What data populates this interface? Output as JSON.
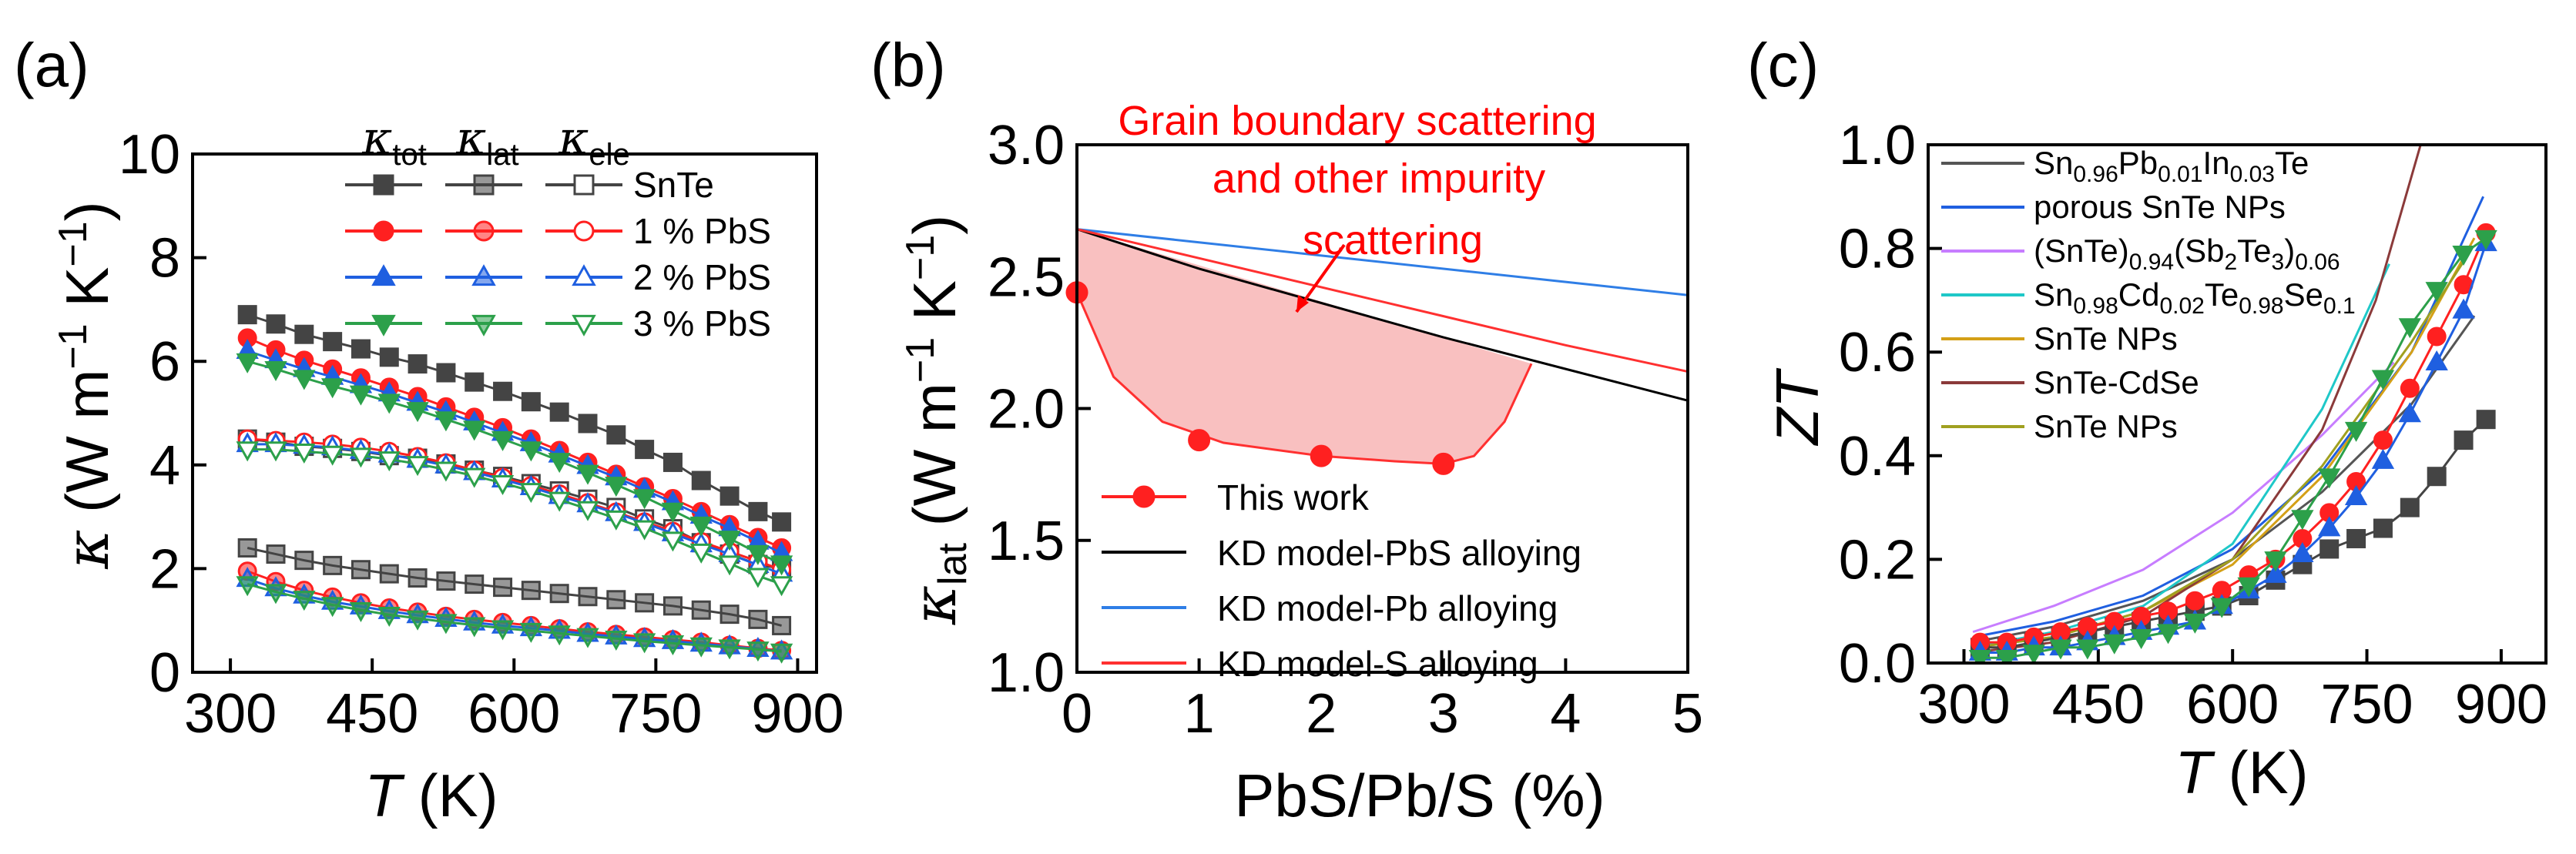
{
  "chart_data": [
    {
      "panel": "(a)",
      "type": "line",
      "xlabel": "T (K)",
      "ylabel": "κ (W m⁻¹ K⁻¹)",
      "xlim": [
        260,
        920
      ],
      "ylim": [
        0,
        10
      ],
      "xticks": [
        300,
        450,
        600,
        750,
        900
      ],
      "yticks": [
        0,
        2,
        4,
        6,
        8,
        10
      ],
      "legend_headers": [
        "tot",
        "lat",
        "ele"
      ],
      "legend_rows": [
        "SnTe",
        "1 % PbS",
        "2 % PbS",
        "3 % PbS"
      ],
      "x": [
        318,
        348,
        378,
        408,
        438,
        468,
        498,
        528,
        558,
        588,
        618,
        648,
        678,
        708,
        738,
        768,
        798,
        828,
        858,
        883
      ],
      "series": [
        {
          "name": "SnTe",
          "color": "#444444",
          "marker": "square",
          "tot": [
            6.9,
            6.72,
            6.52,
            6.38,
            6.24,
            6.08,
            5.95,
            5.78,
            5.6,
            5.42,
            5.22,
            5.02,
            4.8,
            4.58,
            4.3,
            4.05,
            3.7,
            3.4,
            3.1,
            2.9
          ],
          "lat": [
            2.4,
            2.28,
            2.16,
            2.06,
            1.98,
            1.9,
            1.82,
            1.76,
            1.7,
            1.64,
            1.58,
            1.52,
            1.46,
            1.4,
            1.34,
            1.28,
            1.2,
            1.12,
            1.02,
            0.9
          ],
          "ele": [
            4.5,
            4.44,
            4.36,
            4.32,
            4.26,
            4.18,
            4.13,
            4.02,
            3.9,
            3.78,
            3.64,
            3.5,
            3.34,
            3.18,
            2.96,
            2.77,
            2.5,
            2.28,
            2.08,
            2.0
          ]
        },
        {
          "name": "1 % PbS",
          "color": "#ff2020",
          "marker": "circle",
          "tot": [
            6.45,
            6.22,
            6.02,
            5.85,
            5.68,
            5.5,
            5.32,
            5.12,
            4.92,
            4.72,
            4.5,
            4.28,
            4.05,
            3.82,
            3.58,
            3.35,
            3.1,
            2.85,
            2.6,
            2.4
          ],
          "lat": [
            1.95,
            1.75,
            1.58,
            1.45,
            1.34,
            1.24,
            1.16,
            1.08,
            1.02,
            0.96,
            0.9,
            0.84,
            0.78,
            0.73,
            0.68,
            0.63,
            0.58,
            0.52,
            0.46,
            0.42
          ],
          "ele": [
            4.5,
            4.47,
            4.44,
            4.4,
            4.34,
            4.26,
            4.16,
            4.04,
            3.9,
            3.76,
            3.6,
            3.44,
            3.27,
            3.09,
            2.9,
            2.72,
            2.52,
            2.33,
            2.14,
            1.98
          ]
        },
        {
          "name": "2 % PbS",
          "color": "#1f5fe0",
          "marker": "triangle",
          "tot": [
            6.2,
            6.02,
            5.85,
            5.7,
            5.54,
            5.38,
            5.2,
            5.02,
            4.82,
            4.62,
            4.42,
            4.2,
            3.98,
            3.76,
            3.52,
            3.28,
            3.02,
            2.78,
            2.52,
            2.3
          ],
          "lat": [
            1.8,
            1.62,
            1.48,
            1.36,
            1.27,
            1.18,
            1.1,
            1.03,
            0.96,
            0.9,
            0.85,
            0.8,
            0.74,
            0.69,
            0.64,
            0.6,
            0.55,
            0.5,
            0.45,
            0.4
          ],
          "ele": [
            4.4,
            4.4,
            4.37,
            4.34,
            4.27,
            4.2,
            4.1,
            3.99,
            3.86,
            3.72,
            3.57,
            3.4,
            3.24,
            3.07,
            2.88,
            2.68,
            2.47,
            2.28,
            2.07,
            1.9
          ]
        },
        {
          "name": "3 % PbS",
          "color": "#2ca04a",
          "marker": "triangle-down",
          "tot": [
            6.0,
            5.85,
            5.68,
            5.52,
            5.38,
            5.22,
            5.06,
            4.88,
            4.7,
            4.5,
            4.3,
            4.08,
            3.85,
            3.62,
            3.38,
            3.12,
            2.85,
            2.58,
            2.3,
            2.1
          ],
          "lat": [
            1.7,
            1.55,
            1.42,
            1.3,
            1.2,
            1.11,
            1.04,
            0.97,
            0.91,
            0.85,
            0.8,
            0.75,
            0.7,
            0.65,
            0.6,
            0.56,
            0.52,
            0.48,
            0.44,
            0.4
          ],
          "ele": [
            4.3,
            4.3,
            4.26,
            4.22,
            4.18,
            4.11,
            4.02,
            3.91,
            3.79,
            3.65,
            3.5,
            3.33,
            3.15,
            2.97,
            2.78,
            2.56,
            2.33,
            2.1,
            1.86,
            1.7
          ]
        }
      ]
    },
    {
      "panel": "(b)",
      "type": "line",
      "xlabel": "PbS/Pb/S (%)",
      "ylabel": "κlat (W m⁻¹ K⁻¹)",
      "xlim": [
        0,
        5
      ],
      "ylim": [
        1.0,
        3.0
      ],
      "xticks": [
        0,
        1,
        2,
        3,
        4,
        5
      ],
      "yticks": [
        1.0,
        1.5,
        2.0,
        2.5,
        3.0
      ],
      "annotation": [
        "Grain boundary scattering",
        "and other impurity",
        "scattering"
      ],
      "points": {
        "name": "This work",
        "color": "#ff2020",
        "x": [
          0,
          1,
          2,
          3
        ],
        "y": [
          2.44,
          1.88,
          1.82,
          1.79
        ]
      },
      "shaded_region": {
        "color": "#f9c0c0",
        "lower_x": [
          0,
          0.3,
          0.7,
          1.2,
          2.0,
          2.6,
          3.0,
          3.25,
          3.5,
          3.72
        ],
        "lower_y": [
          2.44,
          2.12,
          1.95,
          1.87,
          1.82,
          1.8,
          1.79,
          1.82,
          1.95,
          2.17
        ],
        "upper_x": [
          0,
          3.72
        ],
        "upper_y": [
          2.68,
          2.17
        ]
      },
      "series": [
        {
          "name": "KD model-PbS alloying",
          "color": "#000000",
          "x": [
            0,
            1,
            2,
            3,
            4,
            5
          ],
          "y": [
            2.68,
            2.53,
            2.4,
            2.27,
            2.15,
            2.03
          ]
        },
        {
          "name": "KD model-Pb alloying",
          "color": "#2f7ee6",
          "x": [
            0,
            1,
            2,
            3,
            4,
            5
          ],
          "y": [
            2.68,
            2.63,
            2.58,
            2.53,
            2.48,
            2.43
          ]
        },
        {
          "name": "KD model-S alloying",
          "color": "#ff3030",
          "x": [
            0,
            1,
            2,
            3,
            4,
            5
          ],
          "y": [
            2.68,
            2.57,
            2.46,
            2.35,
            2.24,
            2.14
          ]
        }
      ]
    },
    {
      "panel": "(c)",
      "type": "line",
      "xlabel": "T (K)",
      "ylabel": "ZT",
      "xlim": [
        260,
        950
      ],
      "ylim": [
        0,
        1.0
      ],
      "xticks": [
        300,
        450,
        600,
        750,
        900
      ],
      "yticks": [
        0.0,
        0.2,
        0.4,
        0.6,
        0.8,
        1.0
      ],
      "legend": [
        {
          "name": "Sn0.96Pb0.01In0.03Te",
          "color": "#555555"
        },
        {
          "name": "porous SnTe NPs",
          "color": "#1f5fe0"
        },
        {
          "name": "(SnTe)0.94(Sb2Te3)0.06",
          "color": "#c77dff"
        },
        {
          "name": "Sn0.98Cd0.02Te0.98Se0.1",
          "color": "#1fc8c8"
        },
        {
          "name": "SnTe NPs",
          "color": "#d4a017"
        },
        {
          "name": "SnTe-CdSe",
          "color": "#8b3a3a"
        },
        {
          "name": "SnTe NPs",
          "color": "#a0a020"
        }
      ],
      "reference_curves": [
        {
          "name": "Sn0.96Pb0.01In0.03Te",
          "color": "#555555",
          "x": [
            310,
            400,
            500,
            600,
            700,
            800,
            870
          ],
          "y": [
            0.04,
            0.07,
            0.12,
            0.2,
            0.33,
            0.5,
            0.67
          ]
        },
        {
          "name": "porous SnTe NPs",
          "color": "#1f5fe0",
          "x": [
            310,
            400,
            500,
            600,
            700,
            800,
            880
          ],
          "y": [
            0.05,
            0.08,
            0.13,
            0.22,
            0.37,
            0.6,
            0.9
          ]
        },
        {
          "name": "(SnTe)0.94(Sb2Te3)0.06",
          "color": "#c77dff",
          "x": [
            310,
            400,
            500,
            600,
            700,
            780
          ],
          "y": [
            0.06,
            0.11,
            0.18,
            0.29,
            0.44,
            0.58
          ]
        },
        {
          "name": "Sn0.98Cd0.02Te0.98Se0.1",
          "color": "#1fc8c8",
          "x": [
            310,
            400,
            500,
            600,
            700,
            775
          ],
          "y": [
            0.03,
            0.06,
            0.11,
            0.23,
            0.49,
            0.77
          ]
        },
        {
          "name": "SnTe NPs",
          "color": "#d4a017",
          "x": [
            310,
            400,
            500,
            600,
            700,
            800,
            870
          ],
          "y": [
            0.03,
            0.05,
            0.1,
            0.19,
            0.36,
            0.6,
            0.82
          ]
        },
        {
          "name": "SnTe-CdSe",
          "color": "#8b3a3a",
          "x": [
            310,
            400,
            500,
            600,
            700,
            760,
            810
          ],
          "y": [
            0.02,
            0.04,
            0.09,
            0.2,
            0.45,
            0.7,
            1.0
          ]
        },
        {
          "name": "SnTe NPs",
          "color": "#a0a020",
          "x": [
            310,
            400,
            500,
            600,
            700,
            800,
            860
          ],
          "y": [
            0.03,
            0.05,
            0.1,
            0.2,
            0.38,
            0.62,
            0.78
          ]
        }
      ],
      "x": [
        318,
        348,
        378,
        408,
        438,
        468,
        498,
        528,
        558,
        588,
        618,
        648,
        678,
        708,
        738,
        768,
        798,
        828,
        858,
        883
      ],
      "series": [
        {
          "name": "SnTe",
          "color": "#444444",
          "marker": "square",
          "y": [
            0.03,
            0.03,
            0.04,
            0.05,
            0.06,
            0.07,
            0.08,
            0.09,
            0.1,
            0.11,
            0.13,
            0.16,
            0.19,
            0.22,
            0.24,
            0.26,
            0.3,
            0.36,
            0.43,
            0.47
          ]
        },
        {
          "name": "1 % PbS",
          "color": "#ff2020",
          "marker": "circle",
          "y": [
            0.04,
            0.04,
            0.05,
            0.06,
            0.07,
            0.08,
            0.09,
            0.1,
            0.12,
            0.14,
            0.17,
            0.2,
            0.24,
            0.29,
            0.35,
            0.43,
            0.53,
            0.63,
            0.73,
            0.83
          ]
        },
        {
          "name": "2 % PbS",
          "color": "#1f5fe0",
          "marker": "triangle",
          "y": [
            0.02,
            0.02,
            0.03,
            0.03,
            0.04,
            0.05,
            0.06,
            0.07,
            0.08,
            0.11,
            0.14,
            0.17,
            0.21,
            0.26,
            0.32,
            0.39,
            0.48,
            0.58,
            0.68,
            0.81
          ]
        },
        {
          "name": "3 % PbS",
          "color": "#2ca04a",
          "marker": "triangle-down",
          "y": [
            0.01,
            0.01,
            0.02,
            0.03,
            0.03,
            0.04,
            0.05,
            0.06,
            0.08,
            0.11,
            0.15,
            0.2,
            0.28,
            0.36,
            0.45,
            0.55,
            0.65,
            0.72,
            0.79,
            0.82
          ]
        }
      ]
    }
  ]
}
